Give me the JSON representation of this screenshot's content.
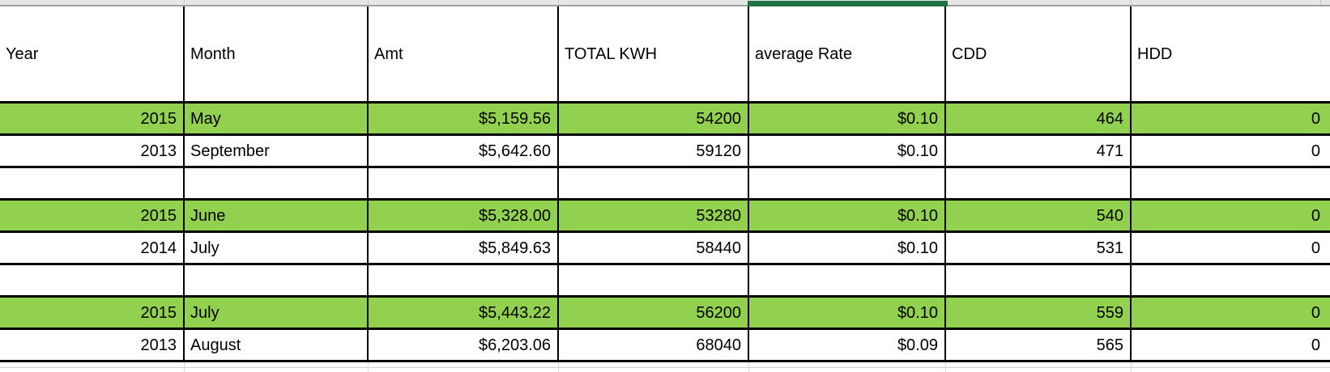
{
  "table": {
    "columns": [
      {
        "label": "Year",
        "align": "right"
      },
      {
        "label": "Month",
        "align": "left"
      },
      {
        "label": "Amt",
        "align": "right"
      },
      {
        "label": "TOTAL KWH",
        "align": "right"
      },
      {
        "label": "average Rate",
        "align": "right"
      },
      {
        "label": "CDD",
        "align": "right"
      },
      {
        "label": "HDD",
        "align": "right"
      }
    ],
    "rows": [
      {
        "highlight": true,
        "cells": [
          "2015",
          "May",
          "$5,159.56",
          "54200",
          "$0.10",
          "464",
          "0"
        ]
      },
      {
        "highlight": false,
        "cells": [
          "2013",
          "September",
          "$5,642.60",
          "59120",
          "$0.10",
          "471",
          "0"
        ]
      },
      {
        "highlight": false,
        "cells": [
          "",
          "",
          "",
          "",
          "",
          "",
          ""
        ]
      },
      {
        "highlight": true,
        "cells": [
          "2015",
          "June",
          "$5,328.00",
          "53280",
          "$0.10",
          "540",
          "0"
        ]
      },
      {
        "highlight": false,
        "cells": [
          "2014",
          "July",
          "$5,849.63",
          "58440",
          "$0.10",
          "531",
          "0"
        ]
      },
      {
        "highlight": false,
        "cells": [
          "",
          "",
          "",
          "",
          "",
          "",
          ""
        ]
      },
      {
        "highlight": true,
        "cells": [
          "2015",
          "July",
          "$5,443.22",
          "56200",
          "$0.10",
          "559",
          "0"
        ]
      },
      {
        "highlight": false,
        "cells": [
          "2013",
          "August",
          "$6,203.06",
          "68040",
          "$0.09",
          "565",
          "0"
        ]
      }
    ],
    "colors": {
      "highlight": "#92d050",
      "selection_border": "#217346",
      "grid_border": "#000000"
    }
  }
}
